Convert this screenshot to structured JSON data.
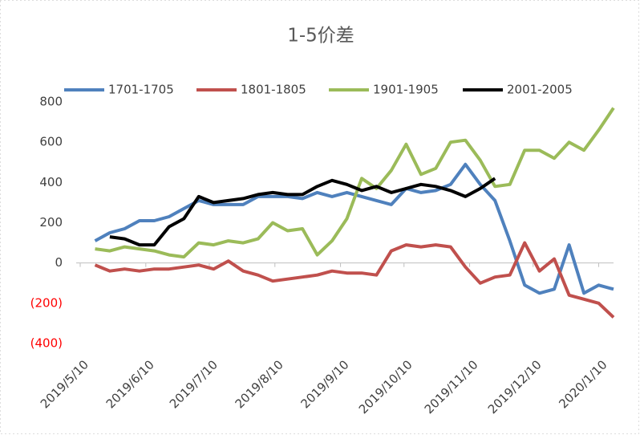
{
  "chart_data": {
    "type": "line",
    "title": "1-5价差",
    "x": [
      "2019/5/17",
      "2019/5/24",
      "2019/5/31",
      "2019/6/7",
      "2019/6/14",
      "2019/6/21",
      "2019/6/28",
      "2019/7/5",
      "2019/7/12",
      "2019/7/19",
      "2019/7/26",
      "2019/8/2",
      "2019/8/9",
      "2019/8/16",
      "2019/8/23",
      "2019/8/30",
      "2019/9/6",
      "2019/9/13",
      "2019/9/20",
      "2019/9/27",
      "2019/10/4",
      "2019/10/11",
      "2019/10/18",
      "2019/10/25",
      "2019/11/1",
      "2019/11/8",
      "2019/11/15",
      "2019/11/22",
      "2019/11/29",
      "2019/12/6",
      "2019/12/13",
      "2019/12/20",
      "2019/12/27",
      "2020/1/3",
      "2020/1/10",
      "2020/1/17"
    ],
    "series": [
      {
        "name": "1701-1705",
        "color": "#4f81bd",
        "values": [
          110,
          150,
          170,
          210,
          210,
          230,
          270,
          310,
          290,
          290,
          290,
          330,
          330,
          330,
          320,
          350,
          330,
          350,
          330,
          310,
          290,
          370,
          350,
          360,
          390,
          490,
          390,
          310,
          110,
          -110,
          -150,
          -130,
          90,
          -150,
          -110,
          -130
        ]
      },
      {
        "name": "1801-1805",
        "color": "#c0504d",
        "values": [
          -10,
          -40,
          -30,
          -40,
          -30,
          -30,
          -20,
          -10,
          -30,
          10,
          -40,
          -60,
          -90,
          -80,
          -70,
          -60,
          -40,
          -50,
          -50,
          -60,
          60,
          90,
          80,
          90,
          80,
          -20,
          -100,
          -70,
          -60,
          100,
          -40,
          20,
          -160,
          -180,
          -200,
          -270
        ]
      },
      {
        "name": "1901-1905",
        "color": "#9bbb59",
        "values": [
          70,
          60,
          80,
          70,
          60,
          40,
          30,
          100,
          90,
          110,
          100,
          120,
          200,
          160,
          170,
          40,
          110,
          220,
          420,
          370,
          460,
          590,
          440,
          470,
          600,
          610,
          510,
          380,
          390,
          560,
          560,
          520,
          600,
          560,
          660,
          770
        ]
      },
      {
        "name": "2001-2005",
        "color": "#000000",
        "values": [
          null,
          130,
          120,
          90,
          90,
          180,
          220,
          330,
          300,
          310,
          320,
          340,
          350,
          340,
          340,
          380,
          410,
          390,
          360,
          380,
          350,
          370,
          390,
          380,
          360,
          330,
          370,
          420,
          null,
          null,
          null,
          null,
          null,
          null,
          null,
          null
        ]
      }
    ],
    "xlim": [
      "2019/5/10",
      "2020/1/17"
    ],
    "xticks": [
      "2019/5/10",
      "2019/6/10",
      "2019/7/10",
      "2019/8/10",
      "2019/9/10",
      "2019/10/10",
      "2019/11/10",
      "2019/12/10",
      "2020/1/10"
    ],
    "ylim": [
      -400,
      800
    ],
    "yticks": [
      800,
      600,
      400,
      200,
      0,
      {
        "value": -200,
        "label": "(200)"
      },
      {
        "value": -400,
        "label": "(400)"
      }
    ],
    "negative_tick_color": "#ff0000",
    "legend": "top",
    "grid": false
  }
}
